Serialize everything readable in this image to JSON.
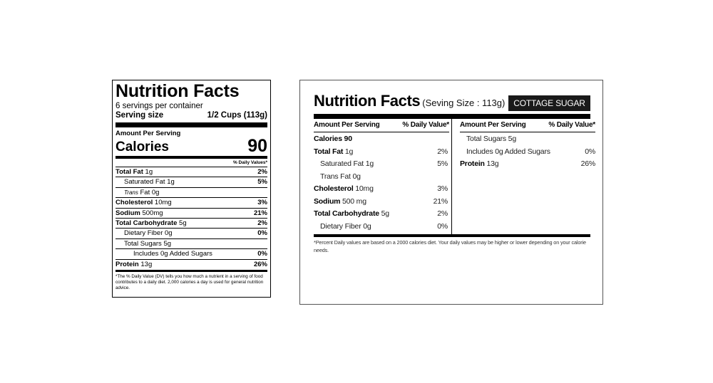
{
  "vertical_label": {
    "title": "Nutrition Facts",
    "servings_per_container": "6 servings per container",
    "serving_size_label": "Serving size",
    "serving_size_value": "1/2 Cups (113g)",
    "amount_per_serving": "Amount Per Serving",
    "calories_label": "Calories",
    "calories_value": "90",
    "dv_header": "% Daily Values*",
    "nutrients": [
      {
        "name": "Total Fat",
        "amount": "1g",
        "dv": "2%"
      },
      {
        "name": "Saturated Fat",
        "amount": "1g",
        "dv": "5%"
      },
      {
        "name": "Trans",
        "amount": "Fat 0g",
        "dv": ""
      },
      {
        "name": "Cholesterol",
        "amount": "10mg",
        "dv": "3%"
      },
      {
        "name": "Sodium",
        "amount": "500mg",
        "dv": "21%"
      },
      {
        "name": "Total Carbohydrate",
        "amount": "5g",
        "dv": "2%"
      },
      {
        "name": "Dietary Fiber",
        "amount": "0g",
        "dv": "0%"
      },
      {
        "name": "Total Sugars",
        "amount": "5g",
        "dv": ""
      },
      {
        "name": "Includes 0g Added Sugars",
        "amount": "",
        "dv": "0%"
      },
      {
        "name": "Protein",
        "amount": "13g",
        "dv": "26%"
      }
    ],
    "footnote": "*The % Daily Value (DV) tells you how much a nutrient in a serving of food contributes to a daily diet. 2,000 calories a day is used for general nutrition advice."
  },
  "tabular_label": {
    "title": "Nutrition Facts",
    "serving_size": "(Seving Size : 113g)",
    "product_name": "COTTAGE SUGAR",
    "col_amount": "Amount Per Serving",
    "col_dv": "% Daily Value*",
    "left_rows": [
      {
        "name": "Calories 90",
        "amount": "",
        "dv": ""
      },
      {
        "name": "Total Fat",
        "amount": "1g",
        "dv": "2%"
      },
      {
        "name": "Saturated Fat 1g",
        "amount": "",
        "dv": "5%"
      },
      {
        "name": "Trans Fat 0g",
        "amount": "",
        "dv": ""
      },
      {
        "name": "Cholesterol",
        "amount": "10mg",
        "dv": "3%"
      },
      {
        "name": "Sodium",
        "amount": "500 mg",
        "dv": "21%"
      },
      {
        "name": "Total Carbohydrate",
        "amount": "5g",
        "dv": "2%"
      },
      {
        "name": "Dietary Fiber 0g",
        "amount": "",
        "dv": "0%"
      }
    ],
    "right_rows": [
      {
        "name": "Total Sugars 5g",
        "amount": "",
        "dv": ""
      },
      {
        "name": "Includes 0g Added Sugars",
        "amount": "",
        "dv": "0%"
      },
      {
        "name": "Protein",
        "amount": "13g",
        "dv": "26%"
      }
    ],
    "footnote": "*Percent Daily values are based on a 2000 calories diet. Your daily values may be higher or lower depending on your calorie needs."
  }
}
